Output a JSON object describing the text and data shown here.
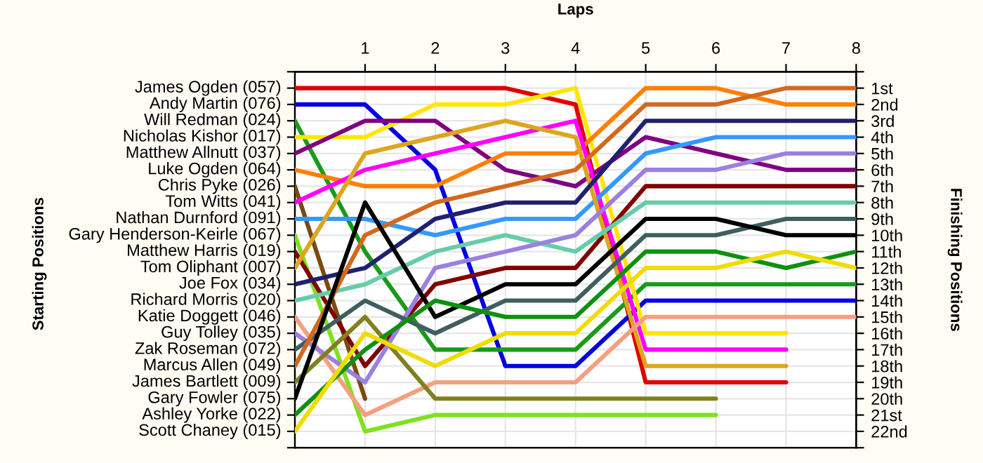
{
  "chart_data": {
    "type": "line",
    "xlabel": "Laps",
    "y2label": "Finishing Positions",
    "x": [
      0,
      1,
      2,
      3,
      4,
      5,
      6,
      7,
      8
    ],
    "xlim": [
      0,
      8
    ],
    "xticks": [
      1,
      2,
      3,
      4,
      5,
      6,
      7,
      8
    ],
    "annotations": [
      "James Ogden (057)",
      "Andy Martin (076)",
      "Will Redman (024)",
      "Nicholas Kishor (017)",
      "Matthew Allnutt (037)",
      "Luke Ogden (064)",
      "Chris Pyke (026)",
      "Tom Witts (041)",
      "Nathan Durnford (091)",
      "Gary Henderson-Keirle (067)",
      "Matthew Harris (019)",
      "Tom Oliphant (007)",
      "Joe Fox (034)",
      "Richard Morris (020)",
      "Katie Doggett (046)",
      "Guy Tolley (035)",
      "Zak Roseman (072)",
      "Marcus Allen (049)",
      "James Bartlett (009)",
      "Gary Fowler (075)",
      "Ashley Yorke (022)",
      "Scott Chaney (015)",
      "Starting Positions"
    ],
    "y2lim": [
      23,
      0
    ],
    "y2ticks": [
      {
        "value": 0,
        "label": null
      },
      {
        "value": 1,
        "label": "1st"
      },
      {
        "value": 2,
        "label": "2nd"
      },
      {
        "value": 3,
        "label": "3rd"
      },
      {
        "value": 4,
        "label": "4th"
      },
      {
        "value": 5,
        "label": "5th"
      },
      {
        "value": 6,
        "label": "6th"
      },
      {
        "value": 7,
        "label": "7th"
      },
      {
        "value": 8,
        "label": "8th"
      },
      {
        "value": 9,
        "label": "9th"
      },
      {
        "value": 10,
        "label": "10th"
      },
      {
        "value": 11,
        "label": "11th"
      },
      {
        "value": 12,
        "label": "12th"
      },
      {
        "value": 13,
        "label": "13th"
      },
      {
        "value": 14,
        "label": "14th"
      },
      {
        "value": 15,
        "label": "15th"
      },
      {
        "value": 16,
        "label": "16th"
      },
      {
        "value": 17,
        "label": "17th"
      },
      {
        "value": 18,
        "label": "18th"
      },
      {
        "value": 19,
        "label": "19th"
      },
      {
        "value": 20,
        "label": "20th"
      },
      {
        "value": 21,
        "label": "21st"
      },
      {
        "value": 22,
        "label": "22nd"
      },
      {
        "value": 23,
        "label": null
      }
    ],
    "grid": true,
    "legend": false,
    "line_style": "solid",
    "series": [
      {
        "axis": "y2",
        "color": "#e00000",
        "values": [
          1,
          1,
          1,
          1,
          2,
          19,
          19,
          19,
          null
        ]
      },
      {
        "axis": "y2",
        "color": "#0000e0",
        "values": [
          2,
          2,
          6,
          18,
          18,
          14,
          14,
          14,
          14
        ]
      },
      {
        "axis": "y2",
        "color": "#1a9a1a",
        "values": [
          3,
          11,
          17,
          17,
          17,
          13,
          13,
          13,
          13
        ]
      },
      {
        "axis": "y2",
        "color": "#ffe600",
        "values": [
          4,
          4,
          2,
          2,
          1,
          16,
          16,
          16,
          null
        ]
      },
      {
        "axis": "y2",
        "color": "#800080",
        "values": [
          5,
          3,
          3,
          6,
          7,
          4,
          5,
          6,
          6
        ]
      },
      {
        "axis": "y2",
        "color": "#ff8000",
        "values": [
          6,
          7,
          7,
          5,
          5,
          1,
          1,
          2,
          2
        ]
      },
      {
        "axis": "y2",
        "color": "#7a4a10",
        "values": [
          7,
          20,
          null,
          null,
          null,
          null,
          null,
          null,
          null
        ]
      },
      {
        "axis": "y2",
        "color": "#ff00ff",
        "values": [
          8,
          6,
          5,
          4,
          3,
          17,
          17,
          17,
          null
        ]
      },
      {
        "axis": "y2",
        "color": "#3399ff",
        "values": [
          9,
          9,
          10,
          9,
          9,
          5,
          4,
          4,
          4
        ]
      },
      {
        "axis": "y2",
        "color": "#80e020",
        "values": [
          10,
          22,
          21,
          21,
          21,
          21,
          21,
          null,
          null
        ]
      },
      {
        "axis": "y2",
        "color": "#800000",
        "values": [
          11,
          18,
          13,
          12,
          12,
          7,
          7,
          7,
          7
        ]
      },
      {
        "axis": "y2",
        "color": "#dda520",
        "values": [
          12,
          5,
          4,
          3,
          4,
          18,
          18,
          18,
          null
        ]
      },
      {
        "axis": "y2",
        "color": "#202070",
        "values": [
          13,
          12,
          9,
          8,
          8,
          3,
          3,
          3,
          3
        ]
      },
      {
        "axis": "y2",
        "color": "#66ccaa",
        "values": [
          14,
          13,
          11,
          10,
          11,
          8,
          8,
          8,
          8
        ]
      },
      {
        "axis": "y2",
        "color": "#f4a080",
        "values": [
          15,
          21,
          19,
          19,
          19,
          15,
          15,
          15,
          15
        ]
      },
      {
        "axis": "y2",
        "color": "#9a80e0",
        "values": [
          16,
          19,
          12,
          11,
          10,
          6,
          6,
          5,
          5
        ]
      },
      {
        "axis": "y2",
        "color": "#3f5f5f",
        "values": [
          17,
          14,
          16,
          14,
          14,
          10,
          10,
          9,
          9
        ]
      },
      {
        "axis": "y2",
        "color": "#d2691e",
        "values": [
          18,
          10,
          8,
          7,
          6,
          2,
          2,
          1,
          1
        ]
      },
      {
        "axis": "y2",
        "color": "#808020",
        "values": [
          19,
          15,
          20,
          20,
          20,
          20,
          20,
          null,
          null
        ]
      },
      {
        "axis": "y2",
        "color": "#000000",
        "values": [
          20,
          8,
          15,
          13,
          13,
          9,
          9,
          10,
          10
        ]
      },
      {
        "axis": "y2",
        "color": "#109010",
        "values": [
          21,
          17,
          14,
          15,
          15,
          11,
          11,
          12,
          11
        ]
      },
      {
        "axis": "y2",
        "color": "#f0dc00",
        "values": [
          22,
          16,
          18,
          16,
          16,
          12,
          12,
          11,
          12
        ]
      }
    ]
  }
}
